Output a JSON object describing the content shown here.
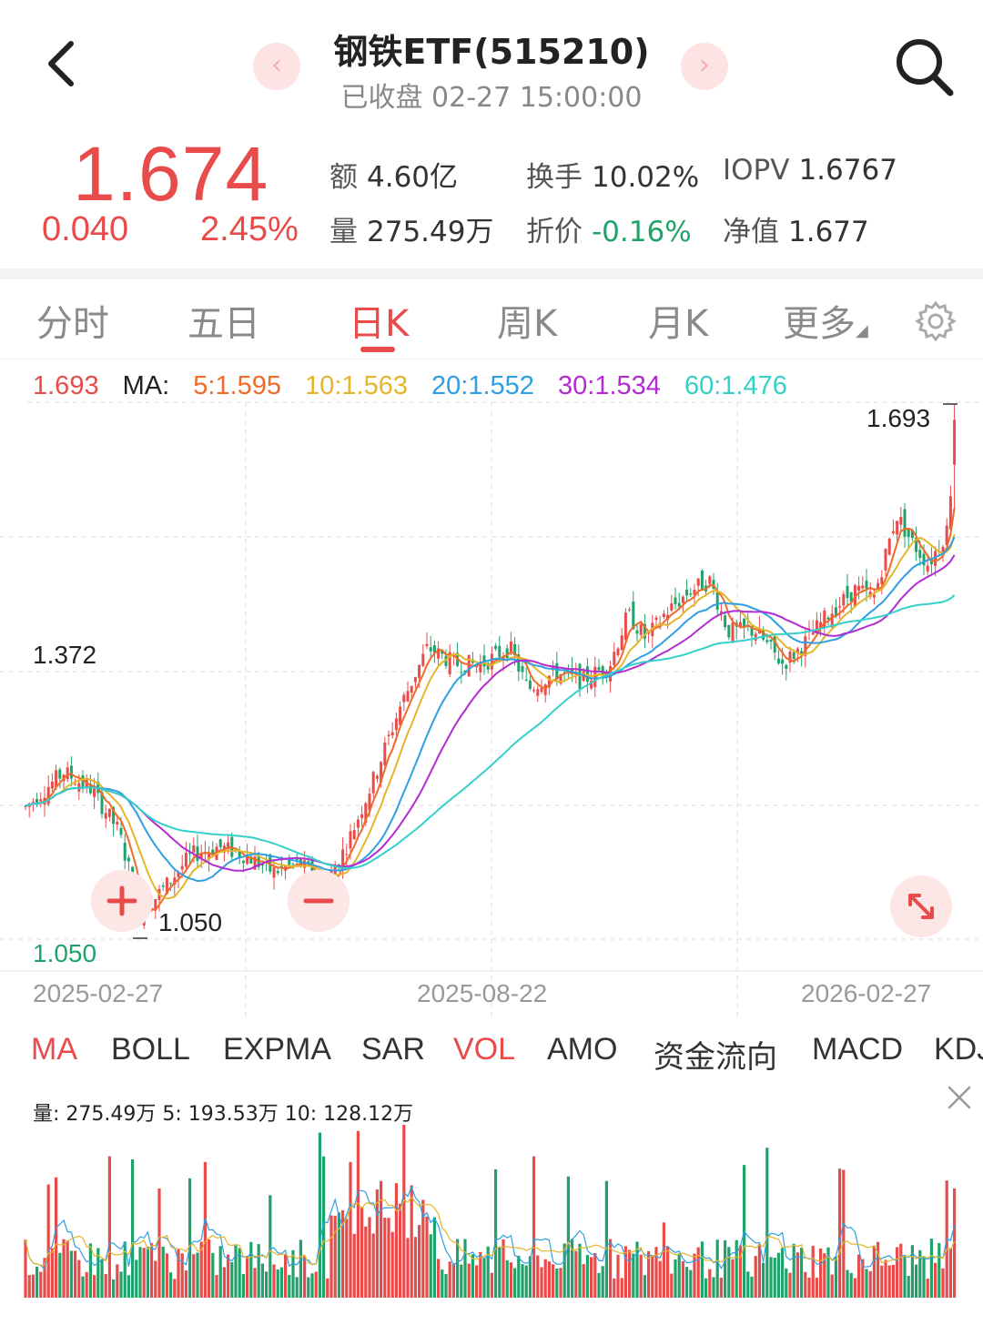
{
  "header": {
    "title": "钢铁ETF(515210)",
    "subtitle": "已收盘 02-27 15:00:00",
    "prev": "‹",
    "next": "›"
  },
  "quote": {
    "price": "1.674",
    "change": "0.040",
    "change_pct": "2.45%",
    "stats": [
      {
        "label": "额",
        "value": "4.60亿"
      },
      {
        "label": "换手",
        "value": "10.02%"
      },
      {
        "label": "IOPV",
        "value": "1.6767"
      },
      {
        "label": "量",
        "value": "275.49万"
      },
      {
        "label": "折价",
        "value": "-0.16%"
      },
      {
        "label": "净值",
        "value": "1.677"
      }
    ]
  },
  "tabs": [
    "分时",
    "五日",
    "日K",
    "周K",
    "月K",
    "更多"
  ],
  "active_tab": "日K",
  "ma_legend": {
    "price": "1.693",
    "label": "MA:",
    "ma5": "5:1.595",
    "ma10": "10:1.563",
    "ma20": "20:1.552",
    "ma30": "30:1.534",
    "ma60": "60:1.476"
  },
  "colors": {
    "up": "#e94b4b",
    "down": "#1fa36b",
    "ma5": "#f06a28",
    "ma10": "#e5b52a",
    "ma20": "#2f9fe2",
    "ma30": "#b32bd1",
    "ma60": "#33d1c9"
  },
  "chart": {
    "high_label": "1.693",
    "low_label": "1.050",
    "axis_mid": "1.372",
    "axis_low": "1.050",
    "dates": [
      "2025-02-27",
      "2025-08-22",
      "2026-02-27"
    ]
  },
  "indicators": [
    "MA",
    "BOLL",
    "EXPMA",
    "SAR",
    "VOL",
    "AMO",
    "资金流向",
    "MACD",
    "KDJ"
  ],
  "volume": {
    "legend": "量: 275.49万  5: 193.53万  10: 128.12万"
  },
  "chart_data": {
    "type": "candlestick",
    "series_note": "daily K-line with moving averages and volume",
    "y_axis_labels": [
      "1.372",
      "1.050"
    ],
    "x_axis_labels": [
      "2025-02-27",
      "2025-08-22",
      "2026-02-27"
    ],
    "extremes": {
      "high": 1.693,
      "low": 1.05
    },
    "ma_values": {
      "MA5": 1.595,
      "MA10": 1.563,
      "MA20": 1.552,
      "MA30": 1.534,
      "MA60": 1.476
    }
  }
}
